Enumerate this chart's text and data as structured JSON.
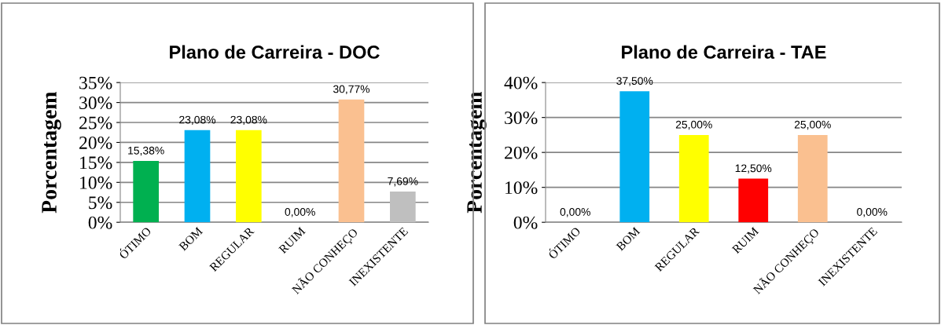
{
  "chart_data": [
    {
      "type": "bar",
      "title": "Plano de Carreira - DOC",
      "ylabel": "Porcentagem",
      "categories": [
        "ÓTIMO",
        "BOM",
        "REGULAR",
        "RUIM",
        "NÃO CONHEÇO",
        "INEXISTENTE"
      ],
      "values": [
        15.38,
        23.08,
        23.08,
        0,
        30.77,
        7.69
      ],
      "colors": [
        "#00b050",
        "#00b0f0",
        "#ffff00",
        "#ff0000",
        "#fac090",
        "#bfbfbf"
      ],
      "value_labels": [
        "15,38%",
        "23,08%",
        "23,08%",
        "0,00%",
        "30,77%",
        "7,69%"
      ],
      "ylim": [
        0,
        35
      ],
      "yticks": [
        {
          "value": 0,
          "label": "0%"
        },
        {
          "value": 5,
          "label": "5%"
        },
        {
          "value": 10,
          "label": "10%"
        },
        {
          "value": 15,
          "label": "15%"
        },
        {
          "value": 20,
          "label": "20%"
        },
        {
          "value": 25,
          "label": "25%"
        },
        {
          "value": 30,
          "label": "30%"
        },
        {
          "value": 35,
          "label": "35%"
        }
      ],
      "grid": "y"
    },
    {
      "type": "bar",
      "title": "Plano de Carreira - TAE",
      "ylabel": "Porcentagem",
      "categories": [
        "ÓTIMO",
        "BOM",
        "REGULAR",
        "RUIM",
        "NÃO CONHEÇO",
        "INEXISTENTE"
      ],
      "values": [
        0,
        37.5,
        25,
        12.5,
        25,
        0
      ],
      "colors": [
        "#00b050",
        "#00b0f0",
        "#ffff00",
        "#ff0000",
        "#fac090",
        "#bfbfbf"
      ],
      "value_labels": [
        "0,00%",
        "37,50%",
        "25,00%",
        "12,50%",
        "25,00%",
        "0,00%"
      ],
      "ylim": [
        0,
        40
      ],
      "yticks": [
        {
          "value": 0,
          "label": "0%"
        },
        {
          "value": 10,
          "label": "10%"
        },
        {
          "value": 20,
          "label": "20%"
        },
        {
          "value": 30,
          "label": "30%"
        },
        {
          "value": 40,
          "label": "40%"
        }
      ],
      "grid": "y"
    }
  ]
}
